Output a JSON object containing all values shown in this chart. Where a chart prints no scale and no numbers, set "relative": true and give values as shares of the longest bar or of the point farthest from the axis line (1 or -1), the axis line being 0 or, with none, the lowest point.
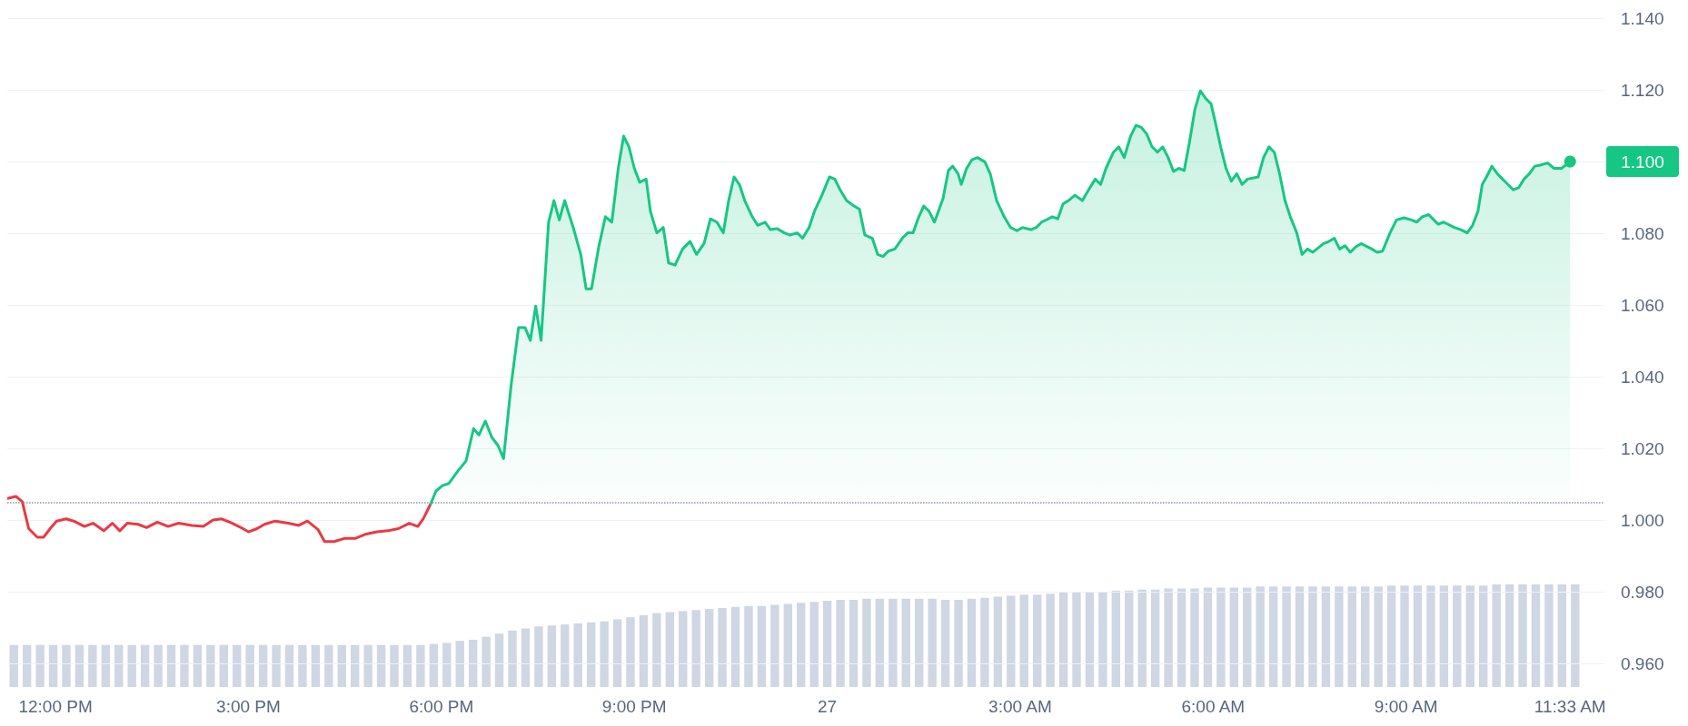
{
  "chart_data": [
    {
      "type": "area",
      "xlim": [
        "--01-26T11:15",
        "--01-27T12:05"
      ],
      "xticks": [
        {
          "value": "--01-26T12:00",
          "label": "12:00 PM"
        },
        {
          "value": "--01-26T15:00",
          "label": "3:00 PM"
        },
        {
          "value": "--01-26T18:00",
          "label": "6:00 PM"
        },
        {
          "value": "--01-26T21:00",
          "label": "9:00 PM"
        },
        {
          "value": "--01-27T00:00",
          "label": "27"
        },
        {
          "value": "--01-27T03:00",
          "label": "3:00 AM"
        },
        {
          "value": "--01-27T06:00",
          "label": "6:00 AM"
        },
        {
          "value": "--01-27T09:00",
          "label": "9:00 AM"
        },
        {
          "value": "--01-27T11:33",
          "label": "11:33 AM"
        }
      ],
      "ylim": [
        0.96,
        1.14
      ],
      "yticks": [
        {
          "value": 0.96,
          "label": "0.960"
        },
        {
          "value": 0.98,
          "label": "0.980"
        },
        {
          "value": 1.0,
          "label": "1.000"
        },
        {
          "value": 1.02,
          "label": "1.020"
        },
        {
          "value": 1.04,
          "label": "1.040"
        },
        {
          "value": 1.06,
          "label": "1.060"
        },
        {
          "value": 1.08,
          "label": "1.080"
        },
        {
          "value": 1.1,
          "label": null
        },
        {
          "value": 1.12,
          "label": "1.120"
        },
        {
          "value": 1.14,
          "label": "1.140"
        }
      ],
      "grid": "y",
      "ref_lines": [
        {
          "axis": "y",
          "value": 1.005,
          "label": null,
          "color": "#8d94a3",
          "line_style": "dotted"
        }
      ],
      "annotations": [
        {
          "text": "1.100",
          "x": "--01-27T11:33",
          "y": 1.1
        }
      ],
      "series": [
        {
          "type": "line",
          "color": "#ea3943",
          "x": [
            "--01-26T11:15",
            "--01-26T11:23",
            "--01-26T11:29",
            "--01-26T11:35",
            "--01-26T11:43",
            "--01-26T11:49",
            "--01-26T11:55",
            "--01-26T12:01",
            "--01-26T12:10",
            "--01-26T12:17",
            "--01-26T12:27",
            "--01-26T12:35",
            "--01-26T12:45",
            "--01-26T12:53",
            "--01-26T13:00",
            "--01-26T13:07",
            "--01-26T13:17",
            "--01-26T13:25",
            "--01-26T13:35",
            "--01-26T13:45",
            "--01-26T13:55",
            "--01-26T14:07",
            "--01-26T14:18",
            "--01-26T14:27",
            "--01-26T14:35",
            "--01-26T14:45",
            "--01-26T14:53",
            "--01-26T15:00",
            "--01-26T15:08",
            "--01-26T15:15",
            "--01-26T15:25",
            "--01-26T15:37",
            "--01-26T15:47",
            "--01-26T15:55",
            "--01-26T16:05",
            "--01-26T16:11",
            "--01-26T16:20",
            "--01-26T16:30",
            "--01-26T16:40",
            "--01-26T16:50",
            "--01-26T17:00",
            "--01-26T17:10",
            "--01-26T17:20",
            "--01-26T17:30",
            "--01-26T17:38",
            "--01-26T17:43",
            "--01-26T17:50"
          ],
          "values": [
            1.006,
            1.0066,
            1.0051,
            0.9976,
            0.9952,
            0.9952,
            0.9976,
            0.9997,
            1.0003,
            0.9997,
            0.9982,
            0.9991,
            0.997,
            0.9991,
            0.997,
            0.9991,
            0.9988,
            0.9979,
            0.9994,
            0.9982,
            0.9991,
            0.9985,
            0.9982,
            1.0,
            1.0003,
            0.9991,
            0.9979,
            0.9967,
            0.9976,
            0.9988,
            0.9997,
            0.9991,
            0.9985,
            0.9997,
            0.9973,
            0.994,
            0.994,
            0.9949,
            0.9949,
            0.9961,
            0.9967,
            0.997,
            0.9976,
            0.9991,
            0.9982,
            1.0003,
            1.0045
          ]
        },
        {
          "color": "#16c784",
          "x": [
            "--01-26T17:50",
            "--01-26T17:55",
            "--01-26T18:01",
            "--01-26T18:07",
            "--01-26T18:15",
            "--01-26T18:23",
            "--01-26T18:30",
            "--01-26T18:35",
            "--01-26T18:41",
            "--01-26T18:47",
            "--01-26T18:53",
            "--01-26T18:58",
            "--01-26T19:05",
            "--01-26T19:12",
            "--01-26T19:18",
            "--01-26T19:23",
            "--01-26T19:28",
            "--01-26T19:33",
            "--01-26T19:40",
            "--01-26T19:45",
            "--01-26T19:50",
            "--01-26T19:55",
            "--01-26T20:03",
            "--01-26T20:10",
            "--01-26T20:15",
            "--01-26T20:20",
            "--01-26T20:27",
            "--01-26T20:33",
            "--01-26T20:39",
            "--01-26T20:45",
            "--01-26T20:50",
            "--01-26T20:55",
            "--01-26T21:00",
            "--01-26T21:05",
            "--01-26T21:11",
            "--01-26T21:15",
            "--01-26T21:21",
            "--01-26T21:27",
            "--01-26T21:32",
            "--01-26T21:38",
            "--01-26T21:45",
            "--01-26T21:52",
            "--01-26T21:58",
            "--01-26T22:05",
            "--01-26T22:11",
            "--01-26T22:17",
            "--01-26T22:23",
            "--01-26T22:28",
            "--01-26T22:33",
            "--01-26T22:38",
            "--01-26T22:43",
            "--01-26T22:50",
            "--01-26T22:55",
            "--01-26T23:02",
            "--01-26T23:07",
            "--01-26T23:13",
            "--01-26T23:20",
            "--01-26T23:25",
            "--01-26T23:32",
            "--01-26T23:37",
            "--01-26T23:43",
            "--01-26T23:48",
            "--01-26T23:55",
            "--01-27T00:02",
            "--01-27T00:07",
            "--01-27T00:12",
            "--01-27T00:18",
            "--01-27T00:25",
            "--01-27T00:30",
            "--01-27T00:35",
            "--01-27T00:42",
            "--01-27T00:47",
            "--01-27T00:52",
            "--01-27T00:57",
            "--01-27T01:03",
            "--01-27T01:10",
            "--01-27T01:15",
            "--01-27T01:20",
            "--01-27T01:25",
            "--01-27T01:30",
            "--01-27T01:35",
            "--01-27T01:40",
            "--01-27T01:48",
            "--01-27T01:53",
            "--01-27T01:57",
            "--01-27T02:02",
            "--01-27T02:05",
            "--01-27T02:10",
            "--01-27T02:15",
            "--01-27T02:20",
            "--01-27T02:27",
            "--01-27T02:32",
            "--01-27T02:38",
            "--01-27T02:45",
            "--01-27T02:51",
            "--01-27T02:57",
            "--01-27T03:02",
            "--01-27T03:10",
            "--01-27T03:15",
            "--01-27T03:20",
            "--01-27T03:30",
            "--01-27T03:35",
            "--01-27T03:40",
            "--01-27T03:45",
            "--01-27T03:51",
            "--01-27T03:58",
            "--01-27T04:05",
            "--01-27T04:10",
            "--01-27T04:15",
            "--01-27T04:20",
            "--01-27T04:27",
            "--01-27T04:32",
            "--01-27T04:37",
            "--01-27T04:43",
            "--01-27T04:48",
            "--01-27T04:53",
            "--01-27T04:58",
            "--01-27T05:03",
            "--01-27T05:08",
            "--01-27T05:13",
            "--01-27T05:18",
            "--01-27T05:23",
            "--01-27T05:28",
            "--01-27T05:33",
            "--01-27T05:38",
            "--01-27T05:43",
            "--01-27T05:48",
            "--01-27T05:53",
            "--01-27T05:58",
            "--01-27T06:02",
            "--01-27T06:07",
            "--01-27T06:12",
            "--01-27T06:17",
            "--01-27T06:22",
            "--01-27T06:27",
            "--01-27T06:32",
            "--01-27T06:42",
            "--01-27T06:47",
            "--01-27T06:52",
            "--01-27T06:57",
            "--01-27T07:02",
            "--01-27T07:07",
            "--01-27T07:12",
            "--01-27T07:18",
            "--01-27T07:23",
            "--01-27T07:28",
            "--01-27T07:33",
            "--01-27T07:43",
            "--01-27T07:48",
            "--01-27T07:53",
            "--01-27T07:58",
            "--01-27T08:03",
            "--01-27T08:08",
            "--01-27T08:13",
            "--01-27T08:18",
            "--01-27T08:28",
            "--01-27T08:33",
            "--01-27T08:38",
            "--01-27T08:45",
            "--01-27T08:51",
            "--01-27T08:58",
            "--01-27T09:05",
            "--01-27T09:10",
            "--01-27T09:15",
            "--01-27T09:21",
            "--01-27T09:30",
            "--01-27T09:35",
            "--01-27T09:45",
            "--01-27T09:51",
            "--01-27T09:57",
            "--01-27T10:02",
            "--01-27T10:07",
            "--01-27T10:11",
            "--01-27T10:15",
            "--01-27T10:20",
            "--01-27T10:25",
            "--01-27T10:30",
            "--01-27T10:35",
            "--01-27T10:40",
            "--01-27T10:45",
            "--01-27T10:50",
            "--01-27T10:55",
            "--01-27T11:00",
            "--01-27T11:05",
            "--01-27T11:12",
            "--01-27T11:18",
            "--01-27T11:25",
            "--01-27T11:33"
          ],
          "values": [
            1.0045,
            1.0081,
            1.0096,
            1.0102,
            1.0135,
            1.0165,
            1.0255,
            1.0237,
            1.0276,
            1.0231,
            1.0207,
            1.0171,
            1.0375,
            1.0537,
            1.0537,
            1.0501,
            1.0597,
            1.0501,
            1.0831,
            1.0891,
            1.0837,
            1.0891,
            1.0816,
            1.0741,
            1.0645,
            1.0645,
            1.0765,
            1.0846,
            1.0831,
            1.0981,
            1.1071,
            1.1041,
            1.0981,
            1.0942,
            1.0951,
            1.0861,
            1.0801,
            1.0816,
            1.0717,
            1.0711,
            1.0756,
            1.0777,
            1.0741,
            1.0771,
            1.084,
            1.0831,
            1.0801,
            1.0891,
            1.0957,
            1.0936,
            1.0891,
            1.0846,
            1.0822,
            1.0831,
            1.081,
            1.0813,
            1.0801,
            1.0795,
            1.0801,
            1.0786,
            1.0816,
            1.0861,
            1.0906,
            1.0957,
            1.0951,
            1.0921,
            1.0891,
            1.0876,
            1.0867,
            1.0795,
            1.0786,
            1.0741,
            1.0735,
            1.075,
            1.0756,
            1.0786,
            1.0801,
            1.0801,
            1.0843,
            1.0876,
            1.0861,
            1.0831,
            1.0897,
            1.0975,
            1.0987,
            1.0966,
            1.0936,
            1.0981,
            1.1005,
            1.1011,
            1.0999,
            1.0966,
            1.0891,
            1.0846,
            1.0816,
            1.0807,
            1.0816,
            1.081,
            1.0816,
            1.0831,
            1.0846,
            1.084,
            1.0882,
            1.0891,
            1.0906,
            1.0891,
            1.0927,
            1.0951,
            1.0936,
            1.0981,
            1.1026,
            1.1041,
            1.1011,
            1.1071,
            1.1101,
            1.1095,
            1.1077,
            1.1041,
            1.1026,
            1.1041,
            1.1011,
            1.0972,
            1.0981,
            1.0975,
            1.1056,
            1.1146,
            1.1197,
            1.1176,
            1.1161,
            1.111,
            1.1041,
            1.0981,
            1.0945,
            1.0966,
            1.0936,
            1.0951,
            1.0957,
            1.1011,
            1.1041,
            1.1026,
            1.0966,
            1.0891,
            1.0846,
            1.0801,
            1.0741,
            1.0756,
            1.0747,
            1.0771,
            1.0777,
            1.0786,
            1.0756,
            1.0765,
            1.0747,
            1.0762,
            1.0771,
            1.0756,
            1.0747,
            1.075,
            1.0801,
            1.0837,
            1.0843,
            1.0837,
            1.0831,
            1.0846,
            1.0852,
            1.0825,
            1.0831,
            1.0816,
            1.081,
            1.0801,
            1.0822,
            1.0861,
            1.0936,
            1.0957,
            1.0987,
            1.0966,
            1.0951,
            1.0936,
            1.0921,
            1.0927,
            1.0951,
            1.0966,
            1.0987,
            1.099,
            1.0996,
            1.0981,
            1.0981,
            1.1
          ]
        }
      ]
    },
    {
      "type": "bar",
      "relative": true,
      "color": "#cfd6e4",
      "categories": [
        null,
        null,
        null,
        null,
        null,
        null,
        null,
        null,
        null,
        null,
        null,
        null,
        null,
        null,
        null,
        null,
        null,
        null,
        null,
        null,
        null,
        null,
        null,
        null,
        null,
        null,
        null,
        null,
        null,
        null,
        null,
        null,
        null,
        null,
        null,
        null,
        null,
        null,
        null,
        null,
        null,
        null,
        null,
        null,
        null,
        null,
        null,
        null,
        null,
        null,
        null,
        null,
        null,
        null,
        null,
        null,
        null,
        null,
        null,
        null,
        null,
        null,
        null,
        null,
        null,
        null,
        null,
        null,
        null,
        null,
        null,
        null,
        null,
        null,
        null,
        null,
        null,
        null,
        null,
        null,
        null,
        null,
        null,
        null,
        null,
        null,
        null,
        null,
        null,
        null,
        null,
        null,
        null,
        null,
        null,
        null,
        null,
        null,
        null,
        null,
        null,
        null,
        null,
        null,
        null,
        null,
        null,
        null,
        null,
        null,
        null,
        null,
        null,
        null,
        null,
        null,
        null,
        null,
        null,
        null
      ],
      "values": [
        0.41,
        0.41,
        0.41,
        0.41,
        0.41,
        0.41,
        0.41,
        0.41,
        0.41,
        0.41,
        0.41,
        0.41,
        0.41,
        0.41,
        0.41,
        0.41,
        0.41,
        0.41,
        0.41,
        0.41,
        0.41,
        0.41,
        0.41,
        0.41,
        0.41,
        0.41,
        0.41,
        0.41,
        0.41,
        0.41,
        0.41,
        0.41,
        0.42,
        0.43,
        0.45,
        0.46,
        0.49,
        0.52,
        0.55,
        0.57,
        0.59,
        0.6,
        0.61,
        0.62,
        0.63,
        0.64,
        0.66,
        0.68,
        0.7,
        0.72,
        0.73,
        0.74,
        0.75,
        0.76,
        0.77,
        0.78,
        0.79,
        0.79,
        0.8,
        0.81,
        0.82,
        0.83,
        0.84,
        0.85,
        0.85,
        0.86,
        0.86,
        0.86,
        0.86,
        0.86,
        0.86,
        0.85,
        0.85,
        0.86,
        0.87,
        0.88,
        0.89,
        0.9,
        0.9,
        0.91,
        0.92,
        0.92,
        0.93,
        0.93,
        0.94,
        0.94,
        0.95,
        0.95,
        0.96,
        0.96,
        0.96,
        0.97,
        0.97,
        0.97,
        0.97,
        0.98,
        0.98,
        0.98,
        0.98,
        0.98,
        0.98,
        0.98,
        0.98,
        0.98,
        0.98,
        0.99,
        0.99,
        0.99,
        0.99,
        0.99,
        0.99,
        0.99,
        0.99,
        1,
        1,
        1,
        1,
        1,
        1,
        1
      ]
    }
  ]
}
